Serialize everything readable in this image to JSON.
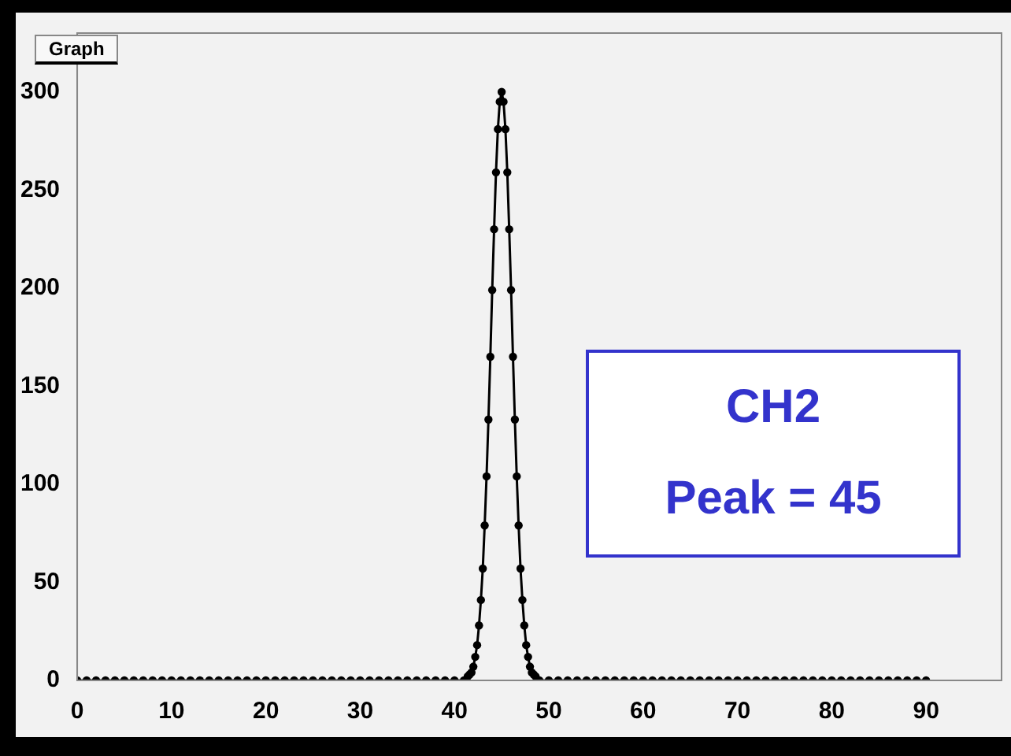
{
  "chart_data": {
    "type": "scatter",
    "title": "Graph",
    "annotations": [
      "CH2",
      "Peak = 45"
    ],
    "series": [
      {
        "color": "#000000",
        "type": "line",
        "x": [
          0,
          1,
          2,
          3,
          4,
          5,
          6,
          7,
          8,
          9,
          10,
          11,
          12,
          13,
          14,
          15,
          16,
          17,
          18,
          19,
          20,
          21,
          22,
          23,
          24,
          25,
          26,
          27,
          28,
          29,
          30,
          31,
          32,
          33,
          34,
          35,
          36,
          37,
          38,
          39,
          40,
          41,
          41.4,
          41.6,
          41.8,
          42,
          42.2,
          42.4,
          42.6,
          42.8,
          43,
          43.2,
          43.4,
          43.6,
          43.8,
          44,
          44.2,
          44.4,
          44.6,
          44.8,
          45,
          45.2,
          45.4,
          45.6,
          45.8,
          46,
          46.2,
          46.4,
          46.6,
          46.8,
          47,
          47.2,
          47.4,
          47.6,
          47.8,
          48,
          48.2,
          48.4,
          48.6,
          49,
          50,
          51,
          52,
          53,
          54,
          55,
          56,
          57,
          58,
          59,
          60,
          61,
          62,
          63,
          64,
          65,
          66,
          67,
          68,
          69,
          70,
          71,
          72,
          73,
          74,
          75,
          76,
          77,
          78,
          79,
          80,
          81,
          82,
          83,
          84,
          85,
          86,
          87,
          88,
          89,
          90
        ],
        "values": [
          0,
          0,
          0,
          0,
          0,
          0,
          0,
          0,
          0,
          0,
          0,
          0,
          0,
          0,
          0,
          0,
          0,
          0,
          0,
          0,
          0,
          0,
          0,
          0,
          0,
          0,
          0,
          0,
          0,
          0,
          0,
          0,
          0,
          0,
          0,
          0,
          0,
          0,
          0,
          0,
          0,
          0,
          2,
          3,
          4,
          7,
          12,
          18,
          28,
          41,
          57,
          79,
          104,
          133,
          165,
          199,
          230,
          259,
          281,
          295,
          300,
          295,
          281,
          259,
          230,
          199,
          165,
          133,
          104,
          79,
          57,
          41,
          28,
          18,
          12,
          7,
          4,
          3,
          2,
          0,
          0,
          0,
          0,
          0,
          0,
          0,
          0,
          0,
          0,
          0,
          0,
          0,
          0,
          0,
          0,
          0,
          0,
          0,
          0,
          0,
          0,
          0,
          0,
          0,
          0,
          0,
          0,
          0,
          0,
          0,
          0,
          0,
          0,
          0,
          0,
          0,
          0,
          0,
          0,
          0,
          0
        ]
      }
    ],
    "xlim": [
      0,
      98
    ],
    "xticks": [
      0,
      10,
      20,
      30,
      40,
      50,
      60,
      70,
      80,
      90
    ],
    "ylim": [
      0,
      330
    ],
    "yticks": [
      0,
      50,
      100,
      150,
      200,
      250,
      300
    ],
    "grid": false,
    "legend": false,
    "marker": "circle",
    "line_style": "solid"
  }
}
